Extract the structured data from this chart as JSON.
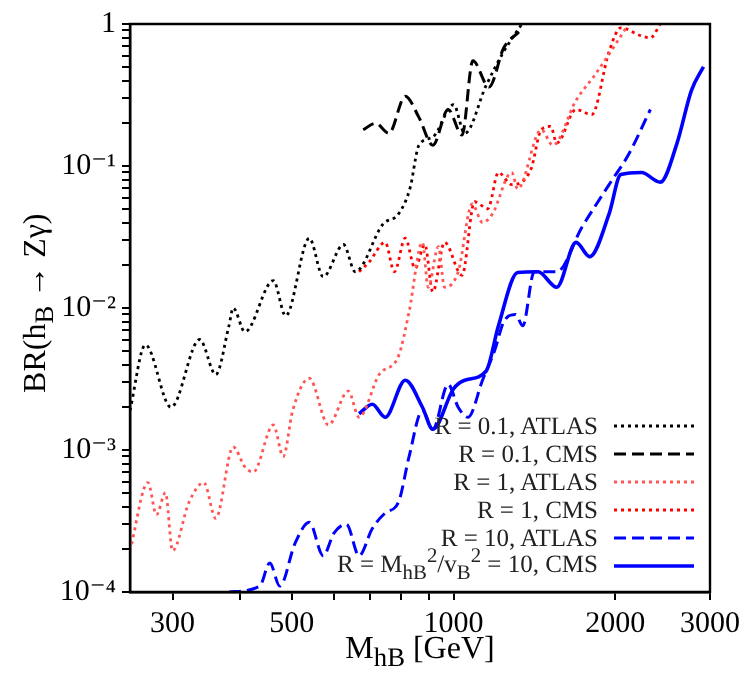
{
  "chart_data": {
    "type": "line",
    "xlabel": "M$_{h}$$_{B}$ [GeV]",
    "ylabel": "BR(h$_{B}$ → Zγ)",
    "log": "xy",
    "grid": false,
    "legend": "bottom right",
    "marker": "none",
    "xlim": [
      250,
      3000
    ],
    "ylim": [
      0.0001,
      1
    ],
    "xticks": [
      300,
      {
        "value": 400,
        "label": null
      },
      500,
      {
        "value": 600,
        "label": null
      },
      {
        "value": 700,
        "label": null
      },
      {
        "value": 800,
        "label": null
      },
      {
        "value": 900,
        "label": null
      },
      1000,
      2000,
      3000
    ],
    "yticks": [
      {
        "value": 0.0001,
        "label": "10⁻⁴"
      },
      {
        "value": 0.0002,
        "label": null
      },
      {
        "value": 0.0003,
        "label": null
      },
      {
        "value": 0.0004,
        "label": null
      },
      {
        "value": 0.0005,
        "label": null
      },
      {
        "value": 0.0006,
        "label": null
      },
      {
        "value": 0.0007,
        "label": null
      },
      {
        "value": 0.0008,
        "label": null
      },
      {
        "value": 0.0009,
        "label": null
      },
      {
        "value": 0.001,
        "label": "10⁻³"
      },
      {
        "value": 0.002,
        "label": null
      },
      {
        "value": 0.003,
        "label": null
      },
      {
        "value": 0.004,
        "label": null
      },
      {
        "value": 0.005,
        "label": null
      },
      {
        "value": 0.006,
        "label": null
      },
      {
        "value": 0.007,
        "label": null
      },
      {
        "value": 0.008,
        "label": null
      },
      {
        "value": 0.009,
        "label": null
      },
      {
        "value": 0.01,
        "label": "10⁻²"
      },
      {
        "value": 0.02,
        "label": null
      },
      {
        "value": 0.03,
        "label": null
      },
      {
        "value": 0.04,
        "label": null
      },
      {
        "value": 0.05,
        "label": null
      },
      {
        "value": 0.06,
        "label": null
      },
      {
        "value": 0.07,
        "label": null
      },
      {
        "value": 0.08,
        "label": null
      },
      {
        "value": 0.09,
        "label": null
      },
      {
        "value": 0.1,
        "label": "10⁻¹"
      },
      {
        "value": 0.2,
        "label": null
      },
      {
        "value": 0.3,
        "label": null
      },
      {
        "value": 0.4,
        "label": null
      },
      {
        "value": 0.5,
        "label": null
      },
      {
        "value": 0.6,
        "label": null
      },
      {
        "value": 0.7,
        "label": null
      },
      {
        "value": 0.8,
        "label": null
      },
      {
        "value": 0.9,
        "label": null
      },
      1
    ],
    "series": [
      {
        "name": "R = 0.1, ATLAS",
        "color": "#000000",
        "line_style": "dotted",
        "x": [
          250,
          267,
          298,
          337,
          361,
          382,
          389,
          409,
          462,
          487,
          539,
          572,
          624,
          656,
          739,
          790,
          830,
          862,
          915,
          1000,
          1049,
          1150,
          1240,
          1340
        ],
        "values": [
          0.0019,
          0.0055,
          0.002,
          0.006,
          0.0034,
          0.0075,
          0.01,
          0.0068,
          0.0156,
          0.0088,
          0.031,
          0.0166,
          0.028,
          0.018,
          0.039,
          0.046,
          0.07,
          0.14,
          0.16,
          0.27,
          0.17,
          0.37,
          0.64,
          1.0
        ]
      },
      {
        "name": "R = 0.1, CMS",
        "color": "#000000",
        "line_style": "dashed",
        "x": [
          679,
          716,
          758,
          813,
          862,
          915,
          977,
          1037,
          1086,
          1164,
          1240,
          1323
        ],
        "values": [
          0.18,
          0.2,
          0.17,
          0.31,
          0.22,
          0.14,
          0.25,
          0.165,
          0.55,
          0.36,
          0.68,
          0.88
        ]
      },
      {
        "name": "R = 1, ATLAS",
        "color": "#ff5555",
        "line_style": "dotted",
        "x": [
          250,
          270,
          280,
          291,
          300,
          322,
          343,
          361,
          389,
          409,
          424,
          462,
          482,
          502,
          539,
          585,
          637,
          667,
          727,
          790,
          826,
          875,
          897,
          937,
          962,
          1020,
          1083,
          1132,
          1181,
          1283,
          1316,
          1456,
          1530,
          1690,
          1834,
          1992,
          2115
        ],
        "values": [
          0.000195,
          0.00059,
          0.00035,
          0.0005,
          0.000195,
          0.00043,
          0.00059,
          0.00033,
          0.00105,
          0.00076,
          0.0007,
          0.0015,
          0.0009,
          0.0019,
          0.0032,
          0.0015,
          0.0026,
          0.0017,
          0.0034,
          0.0046,
          0.0093,
          0.029,
          0.014,
          0.027,
          0.014,
          0.018,
          0.054,
          0.04,
          0.046,
          0.09,
          0.069,
          0.18,
          0.14,
          0.29,
          0.44,
          0.7,
          1.0
        ]
      },
      {
        "name": "R = 1, CMS",
        "color": "#ff0000",
        "line_style": "dotted",
        "x": [
          667,
          696,
          746,
          776,
          813,
          848,
          884,
          915,
          962,
          1037,
          1094,
          1158,
          1212,
          1283,
          1393,
          1456,
          1516,
          1556,
          1690,
          1807,
          1947,
          2047,
          2226,
          2324,
          2425
        ],
        "values": [
          0.018,
          0.021,
          0.029,
          0.018,
          0.031,
          0.019,
          0.028,
          0.013,
          0.029,
          0.017,
          0.056,
          0.05,
          0.09,
          0.074,
          0.095,
          0.18,
          0.19,
          0.145,
          0.25,
          0.23,
          0.64,
          0.94,
          0.83,
          0.8,
          1.0
        ]
      },
      {
        "name": "R = 10, ATLAS",
        "color": "#0000ff",
        "line_style": "dashed",
        "x": [
          382,
          436,
          455,
          475,
          507,
          539,
          572,
          599,
          632,
          667,
          706,
          746,
          790,
          826,
          875,
          915,
          977,
          1020,
          1064,
          1132,
          1192,
          1240,
          1304,
          1345,
          1413,
          1556,
          1733,
          1947,
          2115,
          2324
        ],
        "values": [
          0.0001,
          0.00011,
          0.00016,
          0.00011,
          0.00022,
          0.00031,
          0.00018,
          0.00026,
          0.0003,
          0.00018,
          0.00028,
          0.00036,
          0.00043,
          0.00089,
          0.0019,
          0.0014,
          0.0029,
          0.002,
          0.0017,
          0.0031,
          0.005,
          0.008,
          0.009,
          0.0075,
          0.018,
          0.018,
          0.037,
          0.074,
          0.12,
          0.25
        ]
      },
      {
        "name": "R = M$_{h}$$_{B}$$^{2}$/v$_{B}$$^{2}$ = 10, CMS",
        "color": "#0000ff",
        "line_style": "solid",
        "x": [
          667,
          706,
          746,
          813,
          875,
          915,
          1000,
          1049,
          1150,
          1212,
          1316,
          1436,
          1556,
          1690,
          1792,
          1947,
          2047,
          2236,
          2425,
          2605,
          2770,
          2917
        ],
        "values": [
          0.0018,
          0.0021,
          0.0017,
          0.0031,
          0.002,
          0.0014,
          0.0027,
          0.0031,
          0.0036,
          0.0075,
          0.0178,
          0.018,
          0.014,
          0.029,
          0.023,
          0.046,
          0.087,
          0.09,
          0.077,
          0.145,
          0.34,
          0.5
        ]
      }
    ]
  }
}
